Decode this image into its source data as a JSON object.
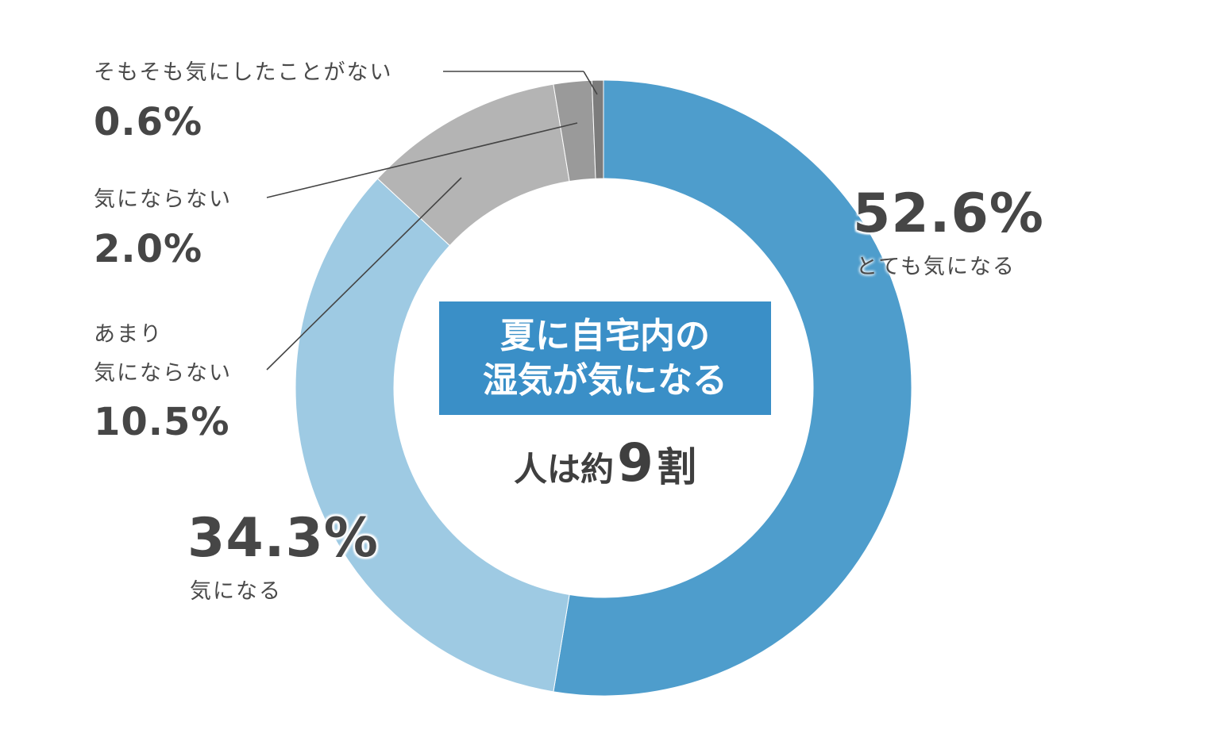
{
  "chart_data": {
    "type": "pie",
    "variant": "donut",
    "slices": [
      {
        "label": "とても気になる",
        "value": 52.6,
        "value_label": "52.6%",
        "color": "#4e9dcc"
      },
      {
        "label": "気になる",
        "value": 34.3,
        "value_label": "34.3%",
        "color": "#9ecae3"
      },
      {
        "label_lines": [
          "あまり",
          "気にならない"
        ],
        "value": 10.5,
        "value_label": "10.5%",
        "color": "#b4b4b4"
      },
      {
        "label": "気にならない",
        "value": 2.0,
        "value_label": "2.0%",
        "color": "#9a9a9a"
      },
      {
        "label": "そもそも気にしたことがない",
        "value": 0.6,
        "value_label": "0.6%",
        "color": "#7c7c7c"
      }
    ],
    "center": {
      "title_lines": [
        "夏に自宅内の",
        "湿気が気になる"
      ],
      "title_bg": "#3a8fc7",
      "subtitle_pre": "人は約",
      "subtitle_num": "9",
      "subtitle_post": "割"
    },
    "leader_line_color": "#444444"
  }
}
